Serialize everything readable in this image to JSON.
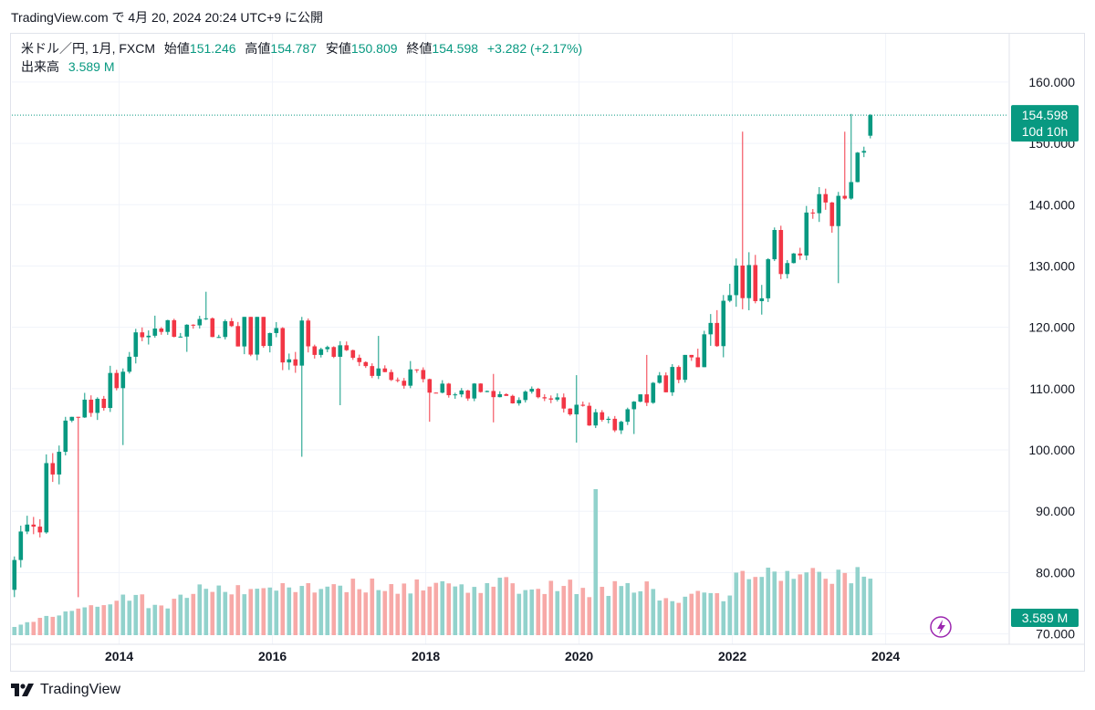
{
  "header": {
    "caption": "TradingView.com で 4月 20, 2024 20:24 UTC+9 に公開"
  },
  "legend": {
    "symbol": "米ドル／円, 1月, FXCM",
    "open_label": "始値",
    "open": "151.246",
    "high_label": "高値",
    "high": "154.787",
    "low_label": "安値",
    "low": "150.809",
    "close_label": "終値",
    "close": "154.598",
    "change": "+3.282 (+2.17%)",
    "volume_label": "出来高",
    "volume": "3.589 M"
  },
  "price_tag": {
    "value": "154.598",
    "countdown": "10d 10h"
  },
  "volume_tag": {
    "value": "3.589 M"
  },
  "footer": {
    "brand": "TradingView"
  },
  "colors": {
    "up": "#089981",
    "down": "#f23645",
    "vol_up": "#92d2cc",
    "vol_down": "#f7a9a7"
  },
  "chart_data": {
    "type": "candlestick",
    "symbol": "USD/JPY",
    "interval": "1M",
    "y_axis": {
      "ticks": [
        "160.000",
        "150.000",
        "140.000",
        "130.000",
        "120.000",
        "110.000",
        "100.000",
        "90.000",
        "80.000",
        "70.000"
      ],
      "range": [
        69.5,
        164
      ]
    },
    "x_axis": {
      "ticks": [
        "2014",
        "2016",
        "2018",
        "2020",
        "2022",
        "2024"
      ],
      "range": [
        2012.6,
        2025.6
      ]
    },
    "last_price": 154.598,
    "last_volume": "3.589 M",
    "yearly_ohlc": [
      {
        "year": 2013,
        "open": 77.0,
        "high": 105.4,
        "low": 76.0,
        "close": 105.3
      },
      {
        "year": 2014,
        "open": 105.3,
        "high": 121.9,
        "low": 100.8,
        "close": 119.8
      },
      {
        "year": 2015,
        "open": 119.8,
        "high": 125.8,
        "low": 116.0,
        "close": 120.2
      },
      {
        "year": 2016,
        "open": 120.2,
        "high": 121.7,
        "low": 98.9,
        "close": 116.9
      },
      {
        "year": 2017,
        "open": 116.9,
        "high": 118.6,
        "low": 107.3,
        "close": 112.7
      },
      {
        "year": 2018,
        "open": 112.7,
        "high": 114.5,
        "low": 104.6,
        "close": 109.7
      },
      {
        "year": 2019,
        "open": 109.7,
        "high": 112.4,
        "low": 104.5,
        "close": 108.6
      },
      {
        "year": 2020,
        "open": 108.6,
        "high": 112.2,
        "low": 101.2,
        "close": 103.2
      },
      {
        "year": 2021,
        "open": 103.2,
        "high": 115.5,
        "low": 102.6,
        "close": 115.1
      },
      {
        "year": 2022,
        "open": 115.1,
        "high": 151.9,
        "low": 113.5,
        "close": 131.1
      },
      {
        "year": 2023,
        "open": 131.1,
        "high": 151.9,
        "low": 127.2,
        "close": 141.0
      },
      {
        "year": 2024,
        "open": 141.0,
        "high": 154.8,
        "low": 140.8,
        "close": 154.6
      }
    ],
    "notable_volume_spike": {
      "date": "2020-03",
      "relative": "highest bar"
    }
  }
}
